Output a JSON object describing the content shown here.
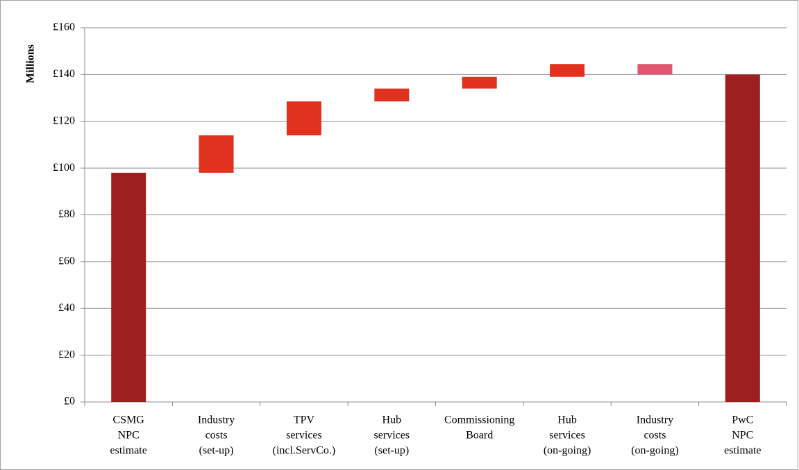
{
  "chart_data": {
    "type": "waterfall",
    "y_label": "Millions",
    "categories": [
      [
        "CSMG",
        "NPC",
        "estimate"
      ],
      [
        "Industry",
        "costs",
        "(set-up)"
      ],
      [
        "TPV",
        "services",
        "(incl.ServCo.)"
      ],
      [
        "Hub",
        "services",
        "(set-up)"
      ],
      [
        "Commissioning",
        "Board"
      ],
      [
        "Hub",
        "services",
        "(on-going)"
      ],
      [
        "Industry",
        "costs",
        "(on-going)"
      ],
      [
        "PwC",
        "NPC",
        "estimate"
      ]
    ],
    "values": [
      98,
      16,
      14.5,
      5.5,
      5,
      5.5,
      -4.5,
      140
    ],
    "is_total": [
      true,
      false,
      false,
      false,
      false,
      false,
      false,
      true
    ],
    "colors": {
      "total": "#9e1f1f",
      "increase": "#e0321e",
      "decrease": "#df5770"
    },
    "ylim": [
      0,
      160
    ],
    "yticks": [
      {
        "value": 0,
        "label": "£0"
      },
      {
        "value": 20,
        "label": "£20"
      },
      {
        "value": 40,
        "label": "£40"
      },
      {
        "value": 60,
        "label": "£60"
      },
      {
        "value": 80,
        "label": "£80"
      },
      {
        "value": 100,
        "label": "£100"
      },
      {
        "value": 120,
        "label": "£120"
      },
      {
        "value": 140,
        "label": "£140"
      },
      {
        "value": 160,
        "label": "£160"
      }
    ],
    "grid": true
  }
}
